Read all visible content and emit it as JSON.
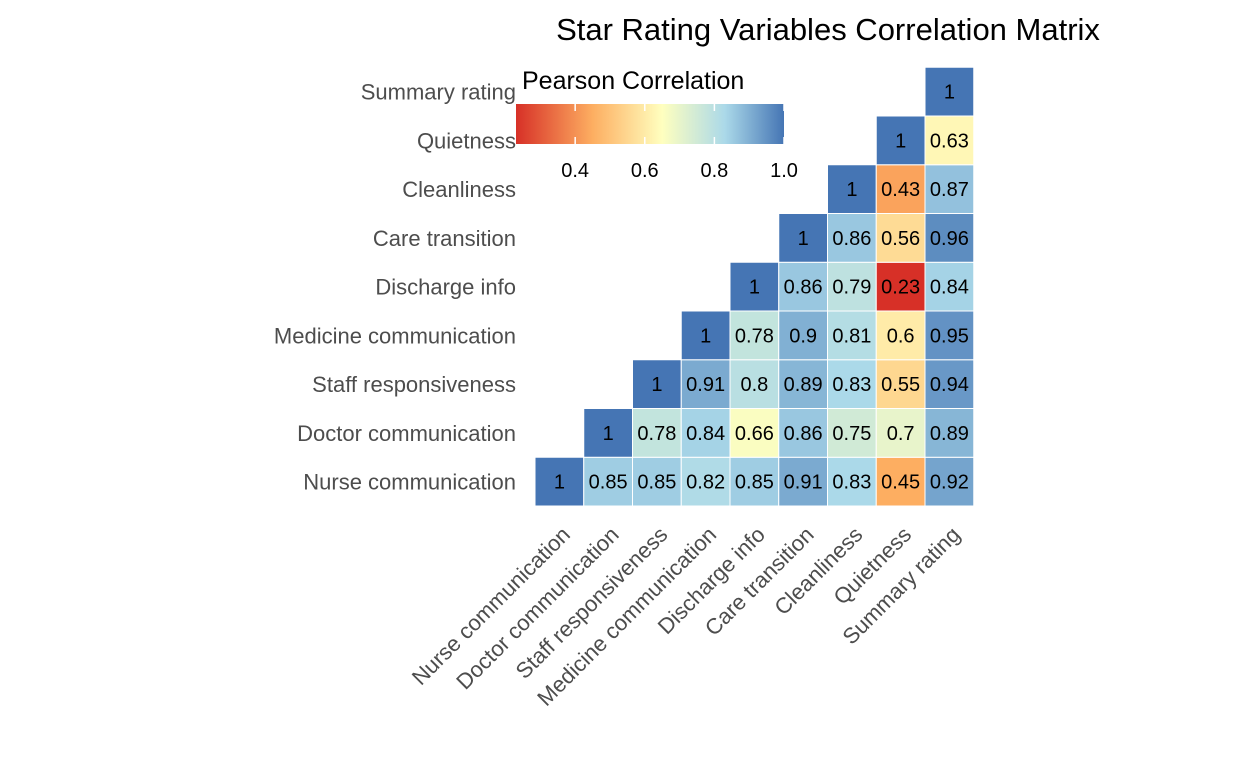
{
  "chart_data": {
    "type": "heatmap",
    "title": "Star Rating Variables Correlation Matrix",
    "legend": {
      "title": "Pearson Correlation",
      "placement": "top-left",
      "ticks": [
        "0.4",
        "0.6",
        "0.8",
        "1.0"
      ],
      "tick_values": [
        0.4,
        0.6,
        0.8,
        1.0
      ],
      "range": [
        0.23,
        1.0
      ]
    },
    "colors": {
      "low": "#d73027",
      "mid_low": "#fdae61",
      "mid": "#ffffbf",
      "mid_high": "#abd9e9",
      "high": "#4575b4",
      "grid_line": "#ffffff"
    },
    "variables": [
      "Nurse communication",
      "Doctor communication",
      "Staff responsiveness",
      "Medicine communication",
      "Discharge info",
      "Care transition",
      "Cleanliness",
      "Quietness",
      "Summary rating"
    ],
    "cells": [
      {
        "row": "Nurse communication",
        "col": "Nurse communication",
        "value": 1,
        "label": "1"
      },
      {
        "row": "Nurse communication",
        "col": "Doctor communication",
        "value": 0.85,
        "label": "0.85"
      },
      {
        "row": "Nurse communication",
        "col": "Staff responsiveness",
        "value": 0.85,
        "label": "0.85"
      },
      {
        "row": "Nurse communication",
        "col": "Medicine communication",
        "value": 0.82,
        "label": "0.82"
      },
      {
        "row": "Nurse communication",
        "col": "Discharge info",
        "value": 0.85,
        "label": "0.85"
      },
      {
        "row": "Nurse communication",
        "col": "Care transition",
        "value": 0.91,
        "label": "0.91"
      },
      {
        "row": "Nurse communication",
        "col": "Cleanliness",
        "value": 0.83,
        "label": "0.83"
      },
      {
        "row": "Nurse communication",
        "col": "Quietness",
        "value": 0.45,
        "label": "0.45"
      },
      {
        "row": "Nurse communication",
        "col": "Summary rating",
        "value": 0.92,
        "label": "0.92"
      },
      {
        "row": "Doctor communication",
        "col": "Doctor communication",
        "value": 1,
        "label": "1"
      },
      {
        "row": "Doctor communication",
        "col": "Staff responsiveness",
        "value": 0.78,
        "label": "0.78"
      },
      {
        "row": "Doctor communication",
        "col": "Medicine communication",
        "value": 0.84,
        "label": "0.84"
      },
      {
        "row": "Doctor communication",
        "col": "Discharge info",
        "value": 0.66,
        "label": "0.66"
      },
      {
        "row": "Doctor communication",
        "col": "Care transition",
        "value": 0.86,
        "label": "0.86"
      },
      {
        "row": "Doctor communication",
        "col": "Cleanliness",
        "value": 0.75,
        "label": "0.75"
      },
      {
        "row": "Doctor communication",
        "col": "Quietness",
        "value": 0.7,
        "label": "0.7"
      },
      {
        "row": "Doctor communication",
        "col": "Summary rating",
        "value": 0.89,
        "label": "0.89"
      },
      {
        "row": "Staff responsiveness",
        "col": "Staff responsiveness",
        "value": 1,
        "label": "1"
      },
      {
        "row": "Staff responsiveness",
        "col": "Medicine communication",
        "value": 0.91,
        "label": "0.91"
      },
      {
        "row": "Staff responsiveness",
        "col": "Discharge info",
        "value": 0.8,
        "label": "0.8"
      },
      {
        "row": "Staff responsiveness",
        "col": "Care transition",
        "value": 0.89,
        "label": "0.89"
      },
      {
        "row": "Staff responsiveness",
        "col": "Cleanliness",
        "value": 0.83,
        "label": "0.83"
      },
      {
        "row": "Staff responsiveness",
        "col": "Quietness",
        "value": 0.55,
        "label": "0.55"
      },
      {
        "row": "Staff responsiveness",
        "col": "Summary rating",
        "value": 0.94,
        "label": "0.94"
      },
      {
        "row": "Medicine communication",
        "col": "Medicine communication",
        "value": 1,
        "label": "1"
      },
      {
        "row": "Medicine communication",
        "col": "Discharge info",
        "value": 0.78,
        "label": "0.78"
      },
      {
        "row": "Medicine communication",
        "col": "Care transition",
        "value": 0.9,
        "label": "0.9"
      },
      {
        "row": "Medicine communication",
        "col": "Cleanliness",
        "value": 0.81,
        "label": "0.81"
      },
      {
        "row": "Medicine communication",
        "col": "Quietness",
        "value": 0.6,
        "label": "0.6"
      },
      {
        "row": "Medicine communication",
        "col": "Summary rating",
        "value": 0.95,
        "label": "0.95"
      },
      {
        "row": "Discharge info",
        "col": "Discharge info",
        "value": 1,
        "label": "1"
      },
      {
        "row": "Discharge info",
        "col": "Care transition",
        "value": 0.86,
        "label": "0.86"
      },
      {
        "row": "Discharge info",
        "col": "Cleanliness",
        "value": 0.79,
        "label": "0.79"
      },
      {
        "row": "Discharge info",
        "col": "Quietness",
        "value": 0.23,
        "label": "0.23"
      },
      {
        "row": "Discharge info",
        "col": "Summary rating",
        "value": 0.84,
        "label": "0.84"
      },
      {
        "row": "Care transition",
        "col": "Care transition",
        "value": 1,
        "label": "1"
      },
      {
        "row": "Care transition",
        "col": "Cleanliness",
        "value": 0.86,
        "label": "0.86"
      },
      {
        "row": "Care transition",
        "col": "Quietness",
        "value": 0.56,
        "label": "0.56"
      },
      {
        "row": "Care transition",
        "col": "Summary rating",
        "value": 0.96,
        "label": "0.96"
      },
      {
        "row": "Cleanliness",
        "col": "Cleanliness",
        "value": 1,
        "label": "1"
      },
      {
        "row": "Cleanliness",
        "col": "Quietness",
        "value": 0.43,
        "label": "0.43"
      },
      {
        "row": "Cleanliness",
        "col": "Summary rating",
        "value": 0.87,
        "label": "0.87"
      },
      {
        "row": "Quietness",
        "col": "Quietness",
        "value": 1,
        "label": "1"
      },
      {
        "row": "Quietness",
        "col": "Summary rating",
        "value": 0.63,
        "label": "0.63"
      },
      {
        "row": "Summary rating",
        "col": "Summary rating",
        "value": 1,
        "label": "1"
      }
    ]
  }
}
